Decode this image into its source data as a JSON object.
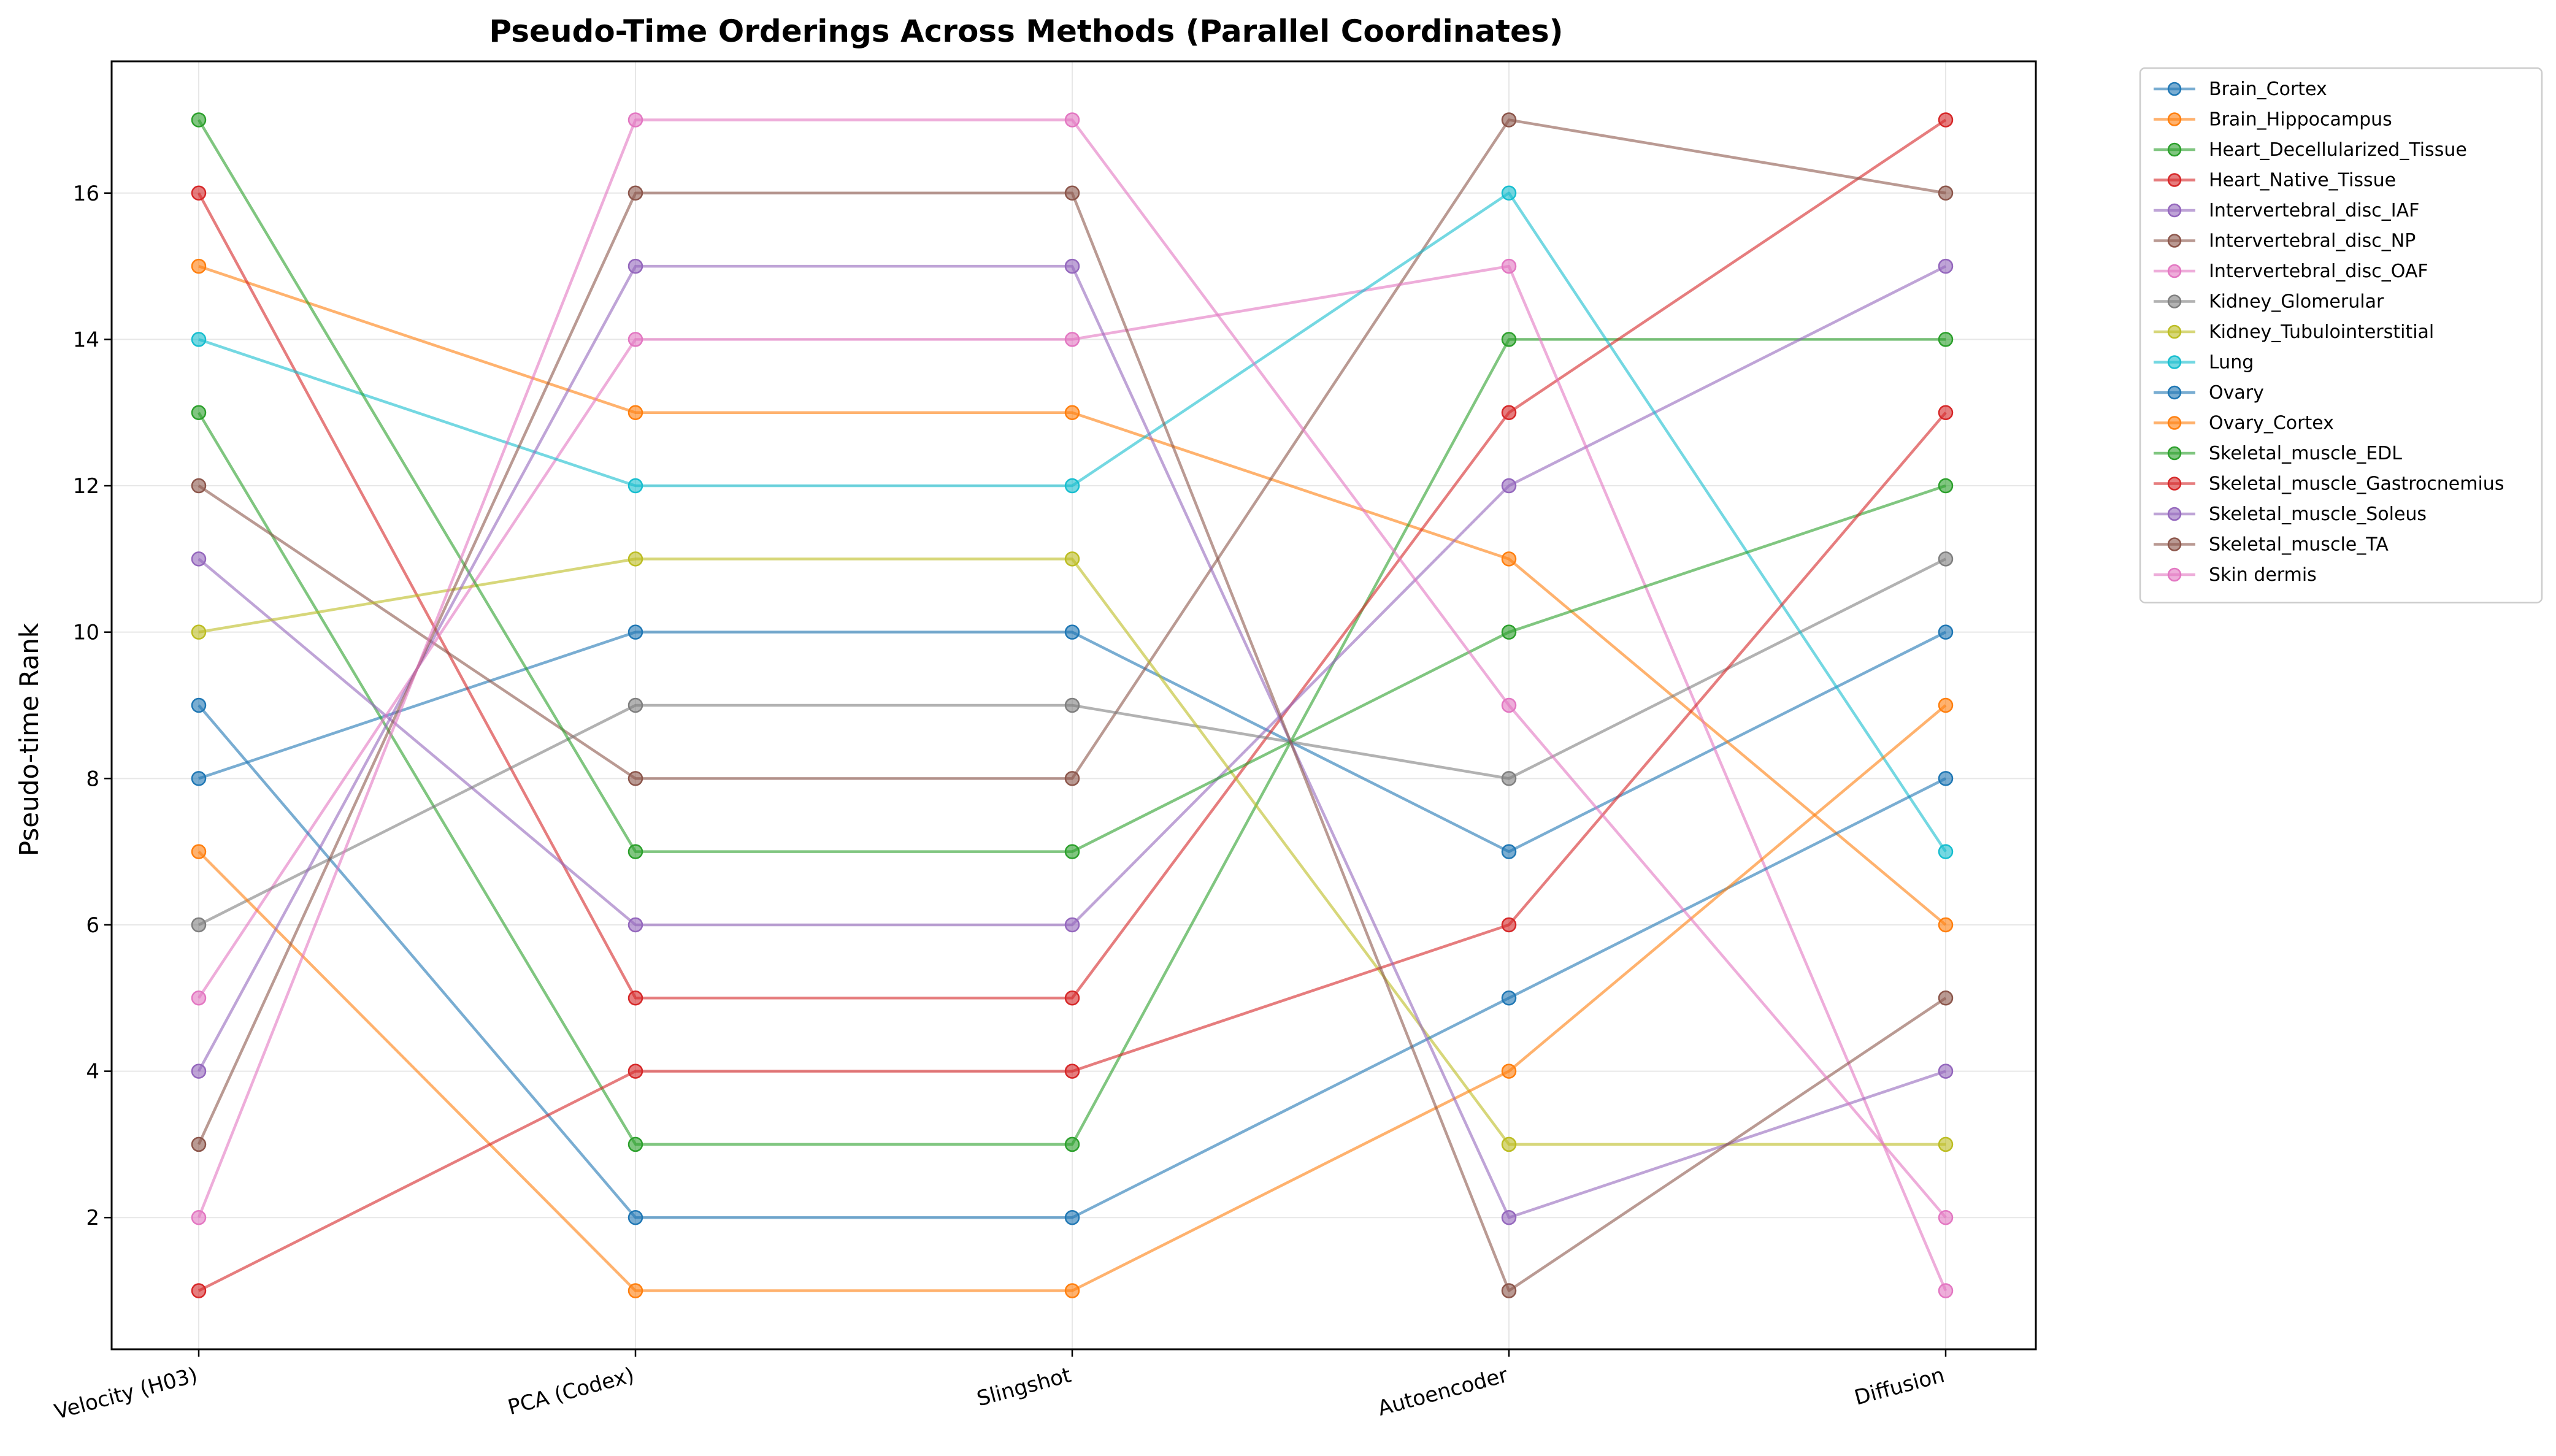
{
  "chart_data": {
    "type": "line",
    "title": "Pseudo-Time Orderings Across Methods (Parallel Coordinates)",
    "xlabel": "",
    "ylabel": "Pseudo-time Rank",
    "categories": [
      "Velocity (H03)",
      "PCA (Codex)",
      "Slingshot",
      "Autoencoder",
      "Diffusion"
    ],
    "ylim": [
      0.2,
      17.8
    ],
    "yticks": [
      2,
      4,
      6,
      8,
      10,
      12,
      14,
      16
    ],
    "grid": true,
    "legend_position": "outside-top-right",
    "series": [
      {
        "name": "Brain_Cortex",
        "color": "#1f77b4",
        "values": [
          8,
          10,
          10,
          7,
          10
        ]
      },
      {
        "name": "Brain_Hippocampus",
        "color": "#ff7f0e",
        "values": [
          15,
          13,
          13,
          11,
          6
        ]
      },
      {
        "name": "Heart_Decellularized_Tissue",
        "color": "#2ca02c",
        "values": [
          13,
          3,
          3,
          14,
          14
        ]
      },
      {
        "name": "Heart_Native_Tissue",
        "color": "#d62728",
        "values": [
          16,
          5,
          5,
          13,
          17
        ]
      },
      {
        "name": "Intervertebral_disc_IAF",
        "color": "#9467bd",
        "values": [
          11,
          6,
          6,
          12,
          15
        ]
      },
      {
        "name": "Intervertebral_disc_NP",
        "color": "#8c564b",
        "values": [
          12,
          8,
          8,
          17,
          16
        ]
      },
      {
        "name": "Intervertebral_disc_OAF",
        "color": "#e377c2",
        "values": [
          5,
          14,
          14,
          15,
          1
        ]
      },
      {
        "name": "Kidney_Glomerular",
        "color": "#7f7f7f",
        "values": [
          6,
          9,
          9,
          8,
          11
        ]
      },
      {
        "name": "Kidney_Tubulointerstitial",
        "color": "#bcbd22",
        "values": [
          10,
          11,
          11,
          3,
          3
        ]
      },
      {
        "name": "Lung",
        "color": "#17becf",
        "values": [
          14,
          12,
          12,
          16,
          7
        ]
      },
      {
        "name": "Ovary",
        "color": "#1f77b4",
        "values": [
          9,
          2,
          2,
          5,
          8
        ]
      },
      {
        "name": "Ovary_Cortex",
        "color": "#ff7f0e",
        "values": [
          7,
          1,
          1,
          4,
          9
        ]
      },
      {
        "name": "Skeletal_muscle_EDL",
        "color": "#2ca02c",
        "values": [
          17,
          7,
          7,
          10,
          12
        ]
      },
      {
        "name": "Skeletal_muscle_Gastrocnemius",
        "color": "#d62728",
        "values": [
          1,
          4,
          4,
          6,
          13
        ]
      },
      {
        "name": "Skeletal_muscle_Soleus",
        "color": "#9467bd",
        "values": [
          4,
          15,
          15,
          2,
          4
        ]
      },
      {
        "name": "Skeletal_muscle_TA",
        "color": "#8c564b",
        "values": [
          3,
          16,
          16,
          1,
          5
        ]
      },
      {
        "name": "Skin dermis",
        "color": "#e377c2",
        "values": [
          2,
          17,
          17,
          9,
          2
        ]
      }
    ]
  }
}
